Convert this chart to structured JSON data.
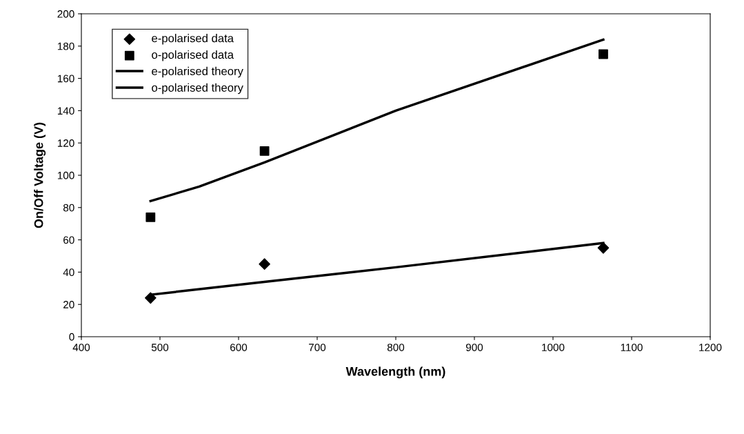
{
  "chart_data": {
    "type": "scatter",
    "xlabel": "Wavelength (nm)",
    "ylabel": "On/Off Voltage (V)",
    "xlim": [
      400,
      1200
    ],
    "xticks": [
      400,
      500,
      600,
      700,
      800,
      900,
      1000,
      1100,
      1200
    ],
    "ylim": [
      0,
      200
    ],
    "yticks": [
      0,
      20,
      40,
      60,
      80,
      100,
      120,
      140,
      160,
      180,
      200
    ],
    "grid": false,
    "legend": "top left",
    "series": [
      {
        "name": "e-polarised data",
        "marker": "diamond",
        "color": "#000000",
        "x": [
          488,
          633,
          1064
        ],
        "values": [
          24,
          45,
          55
        ]
      },
      {
        "name": "o-polarised data",
        "marker": "square",
        "color": "#000000",
        "x": [
          488,
          633,
          1064
        ],
        "values": [
          74,
          115,
          175
        ]
      },
      {
        "name": "e-polarised theory",
        "type": "line",
        "marker": "none",
        "line_style": "solid",
        "color": "#000000",
        "x": [
          488,
          633,
          800,
          1064
        ],
        "values": [
          26,
          34,
          43,
          58
        ]
      },
      {
        "name": "o-polarised theory",
        "type": "line",
        "marker": "none",
        "line_style": "solid",
        "color": "#000000",
        "x": [
          488,
          550,
          633,
          800,
          1064
        ],
        "values": [
          84,
          93,
          108,
          140,
          184
        ]
      }
    ]
  }
}
